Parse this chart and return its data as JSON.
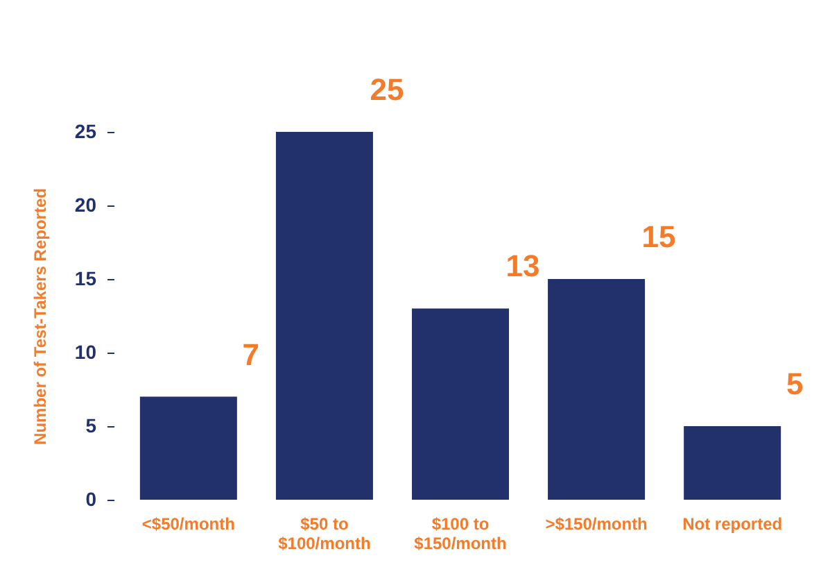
{
  "chart_data": {
    "type": "bar",
    "ylabel": "Number of Test-Takers Reported",
    "categories": [
      "<$50/month",
      "$50 to $100/month",
      "$100 to $150/month",
      ">$150/month",
      "Not reported"
    ],
    "values": [
      7,
      25,
      13,
      15,
      5
    ],
    "color": "#22306b",
    "ylim": [
      0,
      25
    ],
    "yticks": [
      0,
      5,
      10,
      15,
      20,
      25
    ],
    "grid": false,
    "data_labels": true
  }
}
